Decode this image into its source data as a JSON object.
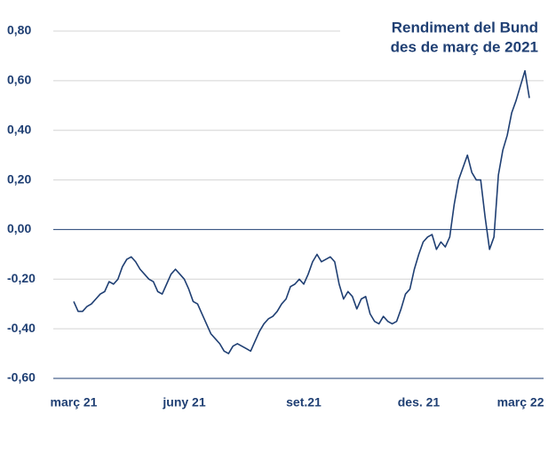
{
  "chart_data": {
    "type": "line",
    "title": "Rendiment del Bund",
    "subtitle": "des de març de 2021",
    "categories": [
      "març 21",
      null,
      null,
      null,
      null,
      null,
      null,
      null,
      null,
      null,
      null,
      null,
      null,
      null,
      null,
      null,
      null,
      null,
      null,
      null,
      null,
      null,
      null,
      null,
      null,
      "juny 21",
      null,
      null,
      null,
      null,
      null,
      null,
      null,
      null,
      null,
      null,
      null,
      null,
      null,
      null,
      null,
      null,
      null,
      null,
      null,
      null,
      null,
      null,
      null,
      null,
      null,
      null,
      "set.21",
      null,
      null,
      null,
      null,
      null,
      null,
      null,
      null,
      null,
      null,
      null,
      null,
      null,
      null,
      null,
      null,
      null,
      null,
      null,
      null,
      null,
      null,
      null,
      null,
      null,
      "des. 21",
      null,
      null,
      null,
      null,
      null,
      null,
      null,
      null,
      null,
      null,
      null,
      null,
      null,
      null,
      null,
      null,
      null,
      null,
      null,
      null,
      null,
      null,
      "març 22",
      null,
      null
    ],
    "series": [
      {
        "name": "Bund",
        "color": "#1f3f73",
        "values": [
          -0.29,
          -0.33,
          -0.33,
          -0.31,
          -0.3,
          -0.28,
          -0.26,
          -0.25,
          -0.21,
          -0.22,
          -0.2,
          -0.15,
          -0.12,
          -0.11,
          -0.13,
          -0.16,
          -0.18,
          -0.2,
          -0.21,
          -0.25,
          -0.26,
          -0.22,
          -0.18,
          -0.16,
          -0.18,
          -0.2,
          -0.24,
          -0.29,
          -0.3,
          -0.34,
          -0.38,
          -0.42,
          -0.44,
          -0.46,
          -0.49,
          -0.5,
          -0.47,
          -0.46,
          -0.47,
          -0.48,
          -0.49,
          -0.45,
          -0.41,
          -0.38,
          -0.36,
          -0.35,
          -0.33,
          -0.3,
          -0.28,
          -0.23,
          -0.22,
          -0.2,
          -0.22,
          -0.18,
          -0.13,
          -0.1,
          -0.13,
          -0.12,
          -0.11,
          -0.13,
          -0.22,
          -0.28,
          -0.25,
          -0.27,
          -0.32,
          -0.28,
          -0.27,
          -0.34,
          -0.37,
          -0.38,
          -0.35,
          -0.37,
          -0.38,
          -0.37,
          -0.32,
          -0.26,
          -0.24,
          -0.16,
          -0.1,
          -0.05,
          -0.03,
          -0.02,
          -0.08,
          -0.05,
          -0.07,
          -0.03,
          0.1,
          0.2,
          0.25,
          0.3,
          0.23,
          0.2,
          0.2,
          0.05,
          -0.08,
          -0.03,
          0.22,
          0.32,
          0.38,
          0.47,
          0.52,
          0.58,
          0.64,
          0.53
        ]
      }
    ],
    "ylim": [
      -0.6,
      0.8
    ],
    "yticks": [
      {
        "value": 0.8,
        "label": "0,80"
      },
      {
        "value": 0.6,
        "label": "0,60"
      },
      {
        "value": 0.4,
        "label": "0,40"
      },
      {
        "value": 0.2,
        "label": "0,20"
      },
      {
        "value": 0,
        "label": "0,00"
      },
      {
        "value": -0.2,
        "label": "-0,20"
      },
      {
        "value": -0.4,
        "label": "-0,40"
      },
      {
        "value": -0.6,
        "label": "-0,60"
      }
    ],
    "grid": true
  }
}
